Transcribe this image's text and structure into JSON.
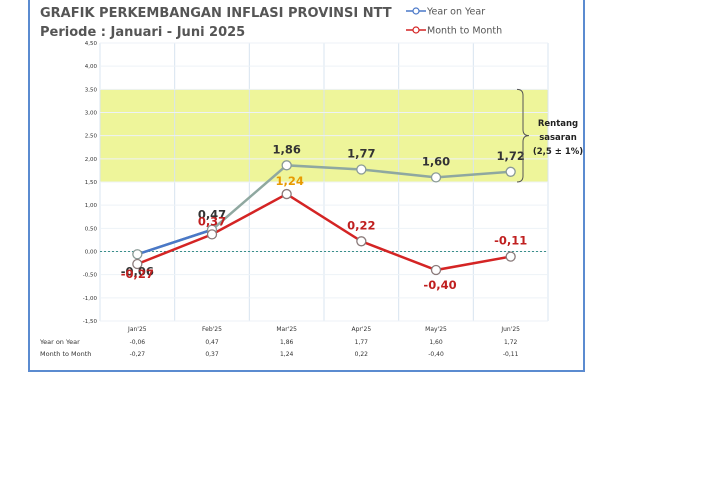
{
  "chart_data": {
    "type": "line",
    "title": "GRAFIK PERKEMBANGAN INFLASI PROVINSI NTT",
    "subtitle": "Periode : Januari - Juni 2025",
    "categories": [
      "Jan'25",
      "Feb'25",
      "Mar'25",
      "Apr'25",
      "May'25",
      "Jun'25"
    ],
    "series": [
      {
        "name": "Year on Year",
        "color": "#8fa8a0",
        "values": [
          -0.06,
          0.47,
          1.86,
          1.77,
          1.6,
          1.72
        ],
        "labels": [
          "-0,06",
          "0,47",
          "1,86",
          "1,77",
          "1,60",
          "1,72"
        ]
      },
      {
        "name": "Month to Month",
        "color": "#d42424",
        "values": [
          -0.27,
          0.37,
          1.24,
          0.22,
          -0.4,
          -0.11
        ],
        "labels": [
          "-0,27",
          "0,37",
          "1,24",
          "0,22",
          "-0,40",
          "-0,11"
        ]
      }
    ],
    "ylim": [
      -1.5,
      4.5
    ],
    "yticks": [
      -1.5,
      -1.0,
      -0.5,
      0.0,
      0.5,
      1.0,
      1.5,
      2.0,
      2.5,
      3.0,
      3.5,
      4.0,
      4.5
    ],
    "ytick_labels": [
      "-1,50",
      "-1,00",
      "-0,50",
      "0,00",
      "0,50",
      "1,00",
      "1,50",
      "2,00",
      "2,50",
      "3,00",
      "3,50",
      "4,00",
      "4,50"
    ],
    "target_band": {
      "range": [
        1.5,
        3.5
      ],
      "color": "#eef59a",
      "label_lines": [
        "Rentang",
        "sasaran",
        "(2,5 ± 1%)"
      ]
    },
    "table_rows": [
      {
        "label": "Year on Year",
        "values": [
          "-0,06",
          "0,47",
          "1,86",
          "1,77",
          "1,60",
          "1,72"
        ]
      },
      {
        "label": "Month to Month",
        "values": [
          "-0,27",
          "0,37",
          "1,24",
          "0,22",
          "-0,40",
          "-0,11"
        ]
      }
    ],
    "legend_position": "top-right",
    "grid": true
  }
}
